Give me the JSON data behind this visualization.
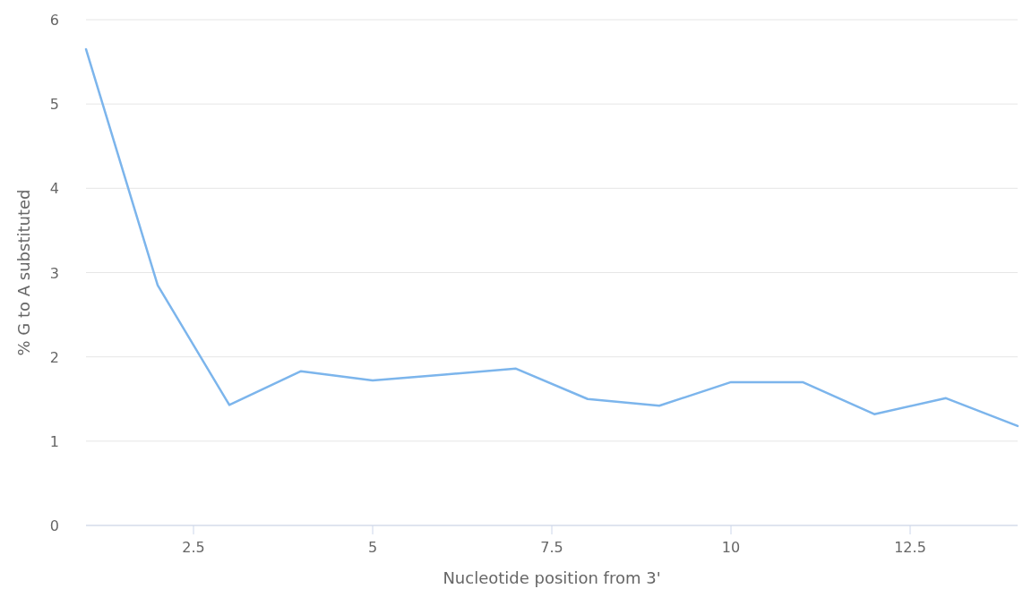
{
  "chart_data": {
    "type": "line",
    "xlabel": "Nucleotide position from 3'",
    "ylabel": "% G to A substituted",
    "x": [
      1,
      2,
      3,
      4,
      5,
      6,
      7,
      8,
      9,
      10,
      11,
      12,
      13,
      14
    ],
    "series": [
      {
        "color": "#7cb5ec",
        "values": [
          5.65,
          2.85,
          1.43,
          1.83,
          1.72,
          1.79,
          1.86,
          1.5,
          1.42,
          1.7,
          1.7,
          1.32,
          1.51,
          1.18
        ]
      }
    ],
    "xlim": [
      1,
      14
    ],
    "xticks": [
      2.5,
      5,
      7.5,
      10,
      12.5
    ],
    "ylim": [
      0,
      6
    ],
    "yticks": [
      0,
      1,
      2,
      3,
      4,
      5,
      6
    ],
    "grid": "y",
    "marker": "none",
    "line_style": "solid"
  }
}
